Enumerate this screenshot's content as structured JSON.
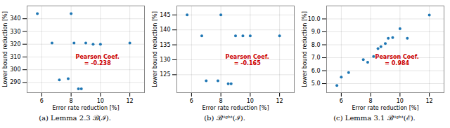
{
  "chart_data": [
    {
      "type": "scatter",
      "title": "(a) Lemma 2.3 ℬ(ℐ).",
      "x": [
        5.7,
        6.7,
        7.2,
        7.8,
        8.0,
        8.2,
        8.5,
        8.7,
        9.0,
        9.5,
        10.0,
        12.0
      ],
      "values": [
        344,
        321,
        292,
        293,
        344,
        321,
        285,
        285,
        321,
        320,
        320,
        321
      ],
      "xlim": [
        5.0,
        13.0
      ],
      "ylim": [
        282,
        350
      ],
      "xticks": [
        6,
        8,
        10,
        12
      ],
      "yticks": [
        290,
        300,
        310,
        320,
        330,
        340
      ],
      "xlabel": "Error rate reduction [%]",
      "ylabel": "Lower bound reduction [%]",
      "color": "#1f77b4",
      "grid": true,
      "annotations": [
        {
          "text": "Pearson Coef.\n= -0.238",
          "color": "#cc0000"
        }
      ]
    },
    {
      "type": "scatter",
      "title": "(b) ℬᵗⁱᵍʰᵗ(ℐ).",
      "x": [
        5.7,
        6.7,
        7.0,
        7.8,
        8.0,
        8.5,
        8.7,
        9.0,
        9.5,
        10.0,
        12.0
      ],
      "values": [
        145,
        138,
        123,
        123,
        145,
        122,
        122,
        138,
        138,
        138,
        138
      ],
      "xlim": [
        5.0,
        13.0
      ],
      "ylim": [
        119,
        148
      ],
      "xticks": [
        6,
        8,
        10,
        12
      ],
      "yticks": [
        125,
        130,
        135,
        140,
        145
      ],
      "xlabel": "Error rate reduction [%]",
      "ylabel": "Lower bound reduction [%]",
      "color": "#1f77b4",
      "grid": true,
      "annotations": [
        {
          "text": "Pearson Coef.\n= -0.165",
          "color": "#cc0000"
        }
      ]
    },
    {
      "type": "scatter",
      "title": "(c) Lemma 3.1 ℬᵗⁱᵍʰᵗ(ℰ).",
      "x": [
        5.7,
        6.0,
        6.5,
        7.5,
        7.8,
        8.2,
        8.5,
        8.7,
        9.0,
        9.2,
        9.5,
        10.0,
        10.5,
        12.0
      ],
      "values": [
        4.85,
        5.5,
        5.85,
        6.85,
        6.65,
        7.1,
        7.7,
        7.85,
        8.1,
        8.5,
        8.55,
        9.25,
        8.5,
        10.3
      ],
      "xlim": [
        5.0,
        13.0
      ],
      "ylim": [
        4.3,
        11.0
      ],
      "xticks": [
        6,
        8,
        10,
        12
      ],
      "yticks": [
        5,
        6,
        7,
        8,
        9,
        10
      ],
      "xlabel": "Error rate reduction [%]",
      "ylabel": "Lower bound reduction [%]",
      "color": "#1f77b4",
      "grid": true,
      "annotations": [
        {
          "text": "Pearson Coef.\n= 0.984",
          "color": "#cc0000"
        }
      ]
    }
  ]
}
